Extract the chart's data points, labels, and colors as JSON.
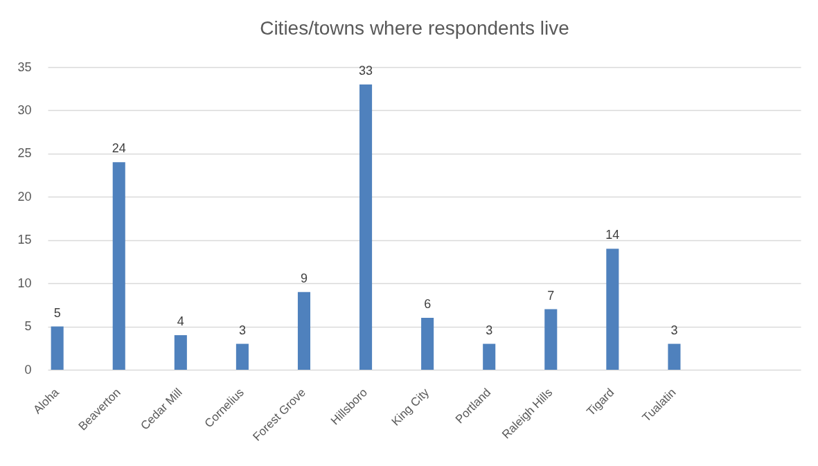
{
  "chart_data": {
    "type": "bar",
    "title": "Cities/towns where respondents live",
    "categories": [
      "Aloha",
      "Beaverton",
      "Cedar Mill",
      "Cornelius",
      "Forest Grove",
      "Hillsboro",
      "King City",
      "Portland",
      "Raleigh Hills",
      "Tigard",
      "Tualatin"
    ],
    "values": [
      5,
      24,
      4,
      3,
      9,
      33,
      6,
      3,
      7,
      14,
      3
    ],
    "color": "#4f81bd",
    "ylim": [
      0,
      35
    ],
    "yticks": [
      0,
      5,
      10,
      15,
      20,
      25,
      30,
      35
    ],
    "grid": "y",
    "data_labels": true
  }
}
